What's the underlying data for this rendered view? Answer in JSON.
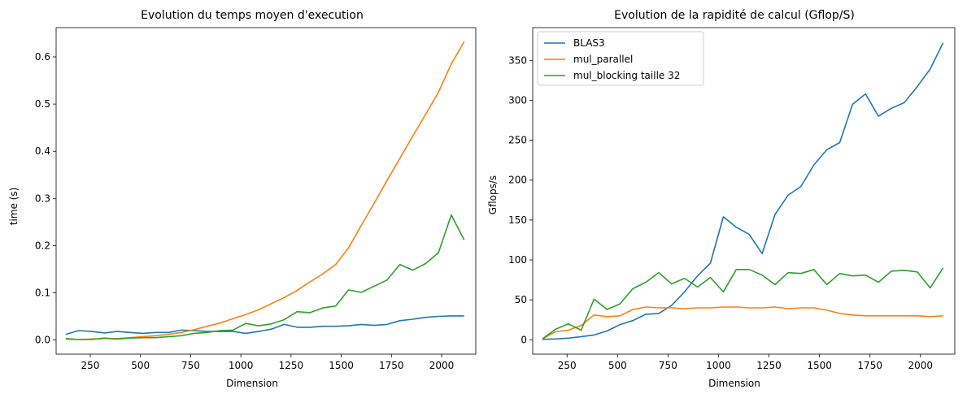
{
  "colors": {
    "blue": "#1f77b4",
    "orange": "#ff7f0e",
    "green": "#2ca02c"
  },
  "chart_data": [
    {
      "type": "line",
      "title": "Evolution du temps moyen d'execution",
      "xlabel": "Dimension",
      "ylabel": "time (s)",
      "xlim": [
        80,
        2170
      ],
      "ylim": [
        -0.03,
        0.662
      ],
      "xticks": [
        250,
        500,
        750,
        1000,
        1250,
        1500,
        1750,
        2000
      ],
      "yticks": [
        0.0,
        0.1,
        0.2,
        0.3,
        0.4,
        0.5,
        0.6
      ],
      "ytick_labels": [
        "0.0",
        "0.1",
        "0.2",
        "0.3",
        "0.4",
        "0.5",
        "0.6"
      ],
      "grid": false,
      "legend": null,
      "x": [
        128,
        192,
        256,
        320,
        384,
        448,
        512,
        576,
        640,
        704,
        768,
        832,
        896,
        960,
        1024,
        1088,
        1152,
        1216,
        1280,
        1344,
        1408,
        1472,
        1536,
        1600,
        1664,
        1728,
        1792,
        1856,
        1920,
        1984,
        2048,
        2112
      ],
      "series": [
        {
          "color": "blue",
          "values": [
            0.012,
            0.02,
            0.018,
            0.015,
            0.018,
            0.016,
            0.014,
            0.016,
            0.016,
            0.021,
            0.02,
            0.018,
            0.018,
            0.018,
            0.014,
            0.018,
            0.023,
            0.033,
            0.027,
            0.027,
            0.029,
            0.029,
            0.03,
            0.033,
            0.031,
            0.033,
            0.041,
            0.044,
            0.048,
            0.05,
            0.051,
            0.051
          ]
        },
        {
          "color": "orange",
          "values": [
            0.002,
            0.001,
            0.002,
            0.003,
            0.003,
            0.005,
            0.007,
            0.009,
            0.012,
            0.016,
            0.022,
            0.029,
            0.036,
            0.045,
            0.054,
            0.064,
            0.077,
            0.09,
            0.105,
            0.123,
            0.14,
            0.16,
            0.195,
            0.243,
            0.29,
            0.338,
            0.385,
            0.432,
            0.478,
            0.525,
            0.585,
            0.632
          ]
        },
        {
          "color": "green",
          "values": [
            0.003,
            0.001,
            0.001,
            0.004,
            0.002,
            0.004,
            0.005,
            0.005,
            0.007,
            0.009,
            0.014,
            0.016,
            0.02,
            0.021,
            0.035,
            0.03,
            0.034,
            0.043,
            0.06,
            0.058,
            0.068,
            0.072,
            0.106,
            0.101,
            0.114,
            0.127,
            0.16,
            0.148,
            0.162,
            0.185,
            0.265,
            0.212
          ]
        }
      ]
    },
    {
      "type": "line",
      "title": "Evolution de la rapidité de calcul (Gflop/S)",
      "xlabel": "Dimension",
      "ylabel": "Gflops/s",
      "xlim": [
        80,
        2170
      ],
      "ylim": [
        -18,
        391
      ],
      "xticks": [
        250,
        500,
        750,
        1000,
        1250,
        1500,
        1750,
        2000
      ],
      "yticks": [
        0,
        50,
        100,
        150,
        200,
        250,
        300,
        350
      ],
      "ytick_labels": [
        "0",
        "50",
        "100",
        "150",
        "200",
        "250",
        "300",
        "350"
      ],
      "grid": false,
      "legend": "top-left",
      "x": [
        128,
        192,
        256,
        320,
        384,
        448,
        512,
        576,
        640,
        704,
        768,
        832,
        896,
        960,
        1024,
        1088,
        1152,
        1216,
        1280,
        1344,
        1408,
        1472,
        1536,
        1600,
        1664,
        1728,
        1792,
        1856,
        1920,
        1984,
        2048,
        2112
      ],
      "series": [
        {
          "name": "BLAS3",
          "color": "blue",
          "values": [
            0.5,
            1,
            2,
            4,
            6,
            11,
            19,
            24,
            32,
            33,
            43,
            60,
            80,
            96,
            154,
            141,
            132,
            108,
            157,
            181,
            192,
            219,
            238,
            247,
            295,
            308,
            280,
            290,
            297,
            317,
            339,
            372
          ]
        },
        {
          "name": "mul_parallel",
          "color": "orange",
          "values": [
            1,
            10,
            12,
            18,
            31,
            29,
            30,
            38,
            41,
            40,
            40,
            39,
            40,
            40,
            41,
            41,
            40,
            40,
            41,
            39,
            40,
            40,
            37,
            33,
            31,
            30,
            30,
            30,
            30,
            30,
            29,
            30
          ]
        },
        {
          "name": "mul_blocking taille 32",
          "color": "green",
          "values": [
            1,
            13,
            20,
            12,
            51,
            38,
            45,
            64,
            72,
            84,
            70,
            77,
            66,
            78,
            60,
            88,
            88,
            81,
            69,
            84,
            83,
            88,
            69,
            83,
            80,
            81,
            72,
            86,
            87,
            85,
            65,
            90
          ]
        }
      ]
    }
  ]
}
